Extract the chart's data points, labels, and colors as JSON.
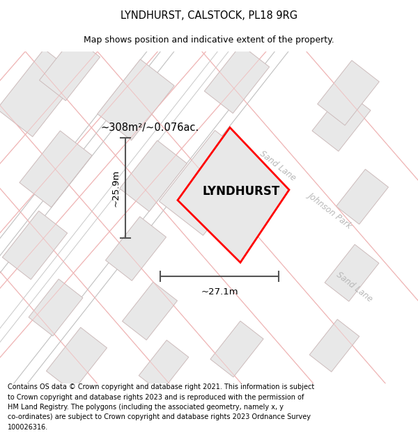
{
  "title": "LYNDHURST, CALSTOCK, PL18 9RG",
  "subtitle": "Map shows position and indicative extent of the property.",
  "footer_line1": "Contains OS data © Crown copyright and database right 2021. This information is subject",
  "footer_line2": "to Crown copyright and database rights 2023 and is reproduced with the permission of",
  "footer_line3": "HM Land Registry. The polygons (including the associated geometry, namely x, y",
  "footer_line4": "co-ordinates) are subject to Crown copyright and database rights 2023 Ordnance Survey",
  "footer_line5": "100026316.",
  "property_name": "LYNDHURST",
  "area_text": "~308m²/~0.076ac.",
  "width_text": "~27.1m",
  "height_text": "~25.9m",
  "map_bg": "#ffffff",
  "property_fill": "#e8e8e8",
  "property_edge": "#ff0000",
  "road_outline_color": "#f0b8b8",
  "road_center_color": "#e8a0a0",
  "building_fill": "#e8e8e8",
  "building_outline": "#ccbbbb",
  "street_label_color": "#b8b8b8",
  "dim_color": "#555555",
  "title_fontsize": 10.5,
  "subtitle_fontsize": 9,
  "footer_fontsize": 7.0,
  "property_label_fontsize": 12,
  "area_fontsize": 10.5,
  "dim_fontsize": 9.5
}
